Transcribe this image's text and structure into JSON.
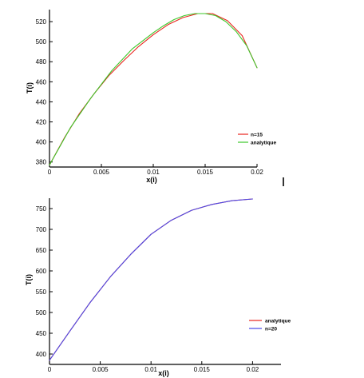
{
  "chart_data": [
    {
      "type": "line",
      "xlabel": "x(i)",
      "ylabel": "T(i)",
      "xlim": [
        0,
        0.02
      ],
      "ylim": [
        375,
        532
      ],
      "xticks": [
        "0",
        "0.005",
        "0.01",
        "0.015",
        "0.02"
      ],
      "yticks": [
        "380",
        "400",
        "420",
        "440",
        "460",
        "480",
        "500",
        "520"
      ],
      "legend": "center-right",
      "series": [
        {
          "name": "n=15",
          "color": "#e8251e",
          "x": [
            0,
            0.00143,
            0.00286,
            0.00429,
            0.00571,
            0.00714,
            0.00857,
            0.01,
            0.01143,
            0.01286,
            0.01429,
            0.01571,
            0.01714,
            0.01857,
            0.02
          ],
          "y": [
            377,
            404,
            428,
            448,
            466,
            481,
            495,
            507,
            517,
            524,
            528,
            528,
            521,
            506,
            474
          ]
        },
        {
          "name": "analytique",
          "color": "#3cc82a",
          "x": [
            0,
            0.002,
            0.004,
            0.006,
            0.008,
            0.01,
            0.011,
            0.012,
            0.013,
            0.014,
            0.015,
            0.016,
            0.017,
            0.018,
            0.019,
            0.02
          ],
          "y": [
            377,
            414,
            444,
            471,
            493,
            509,
            516,
            522,
            526,
            528,
            528,
            526,
            520,
            510,
            496,
            474
          ]
        }
      ]
    },
    {
      "type": "line",
      "xlabel": "x(i)",
      "ylabel": "T(i)",
      "xlim": [
        0,
        0.0228
      ],
      "ylim": [
        375,
        775
      ],
      "xticks": [
        "0",
        "0.005",
        "0.01",
        "0.015",
        "0.02"
      ],
      "yticks": [
        "400",
        "450",
        "500",
        "550",
        "600",
        "650",
        "700",
        "750"
      ],
      "legend": "center-right",
      "series": [
        {
          "name": "analytique",
          "color": "#e8251e",
          "x": [
            0,
            0.002,
            0.004,
            0.006,
            0.008,
            0.01,
            0.012,
            0.014,
            0.016,
            0.018,
            0.02
          ],
          "y": [
            385,
            455,
            524,
            586,
            640,
            688,
            722,
            746,
            760,
            769,
            773
          ]
        },
        {
          "name": "n=20",
          "color": "#4a4ae8",
          "x": [
            0,
            0.002,
            0.004,
            0.006,
            0.008,
            0.01,
            0.012,
            0.014,
            0.016,
            0.018,
            0.02
          ],
          "y": [
            385,
            455,
            524,
            586,
            640,
            688,
            722,
            746,
            760,
            769,
            773
          ]
        }
      ]
    }
  ]
}
